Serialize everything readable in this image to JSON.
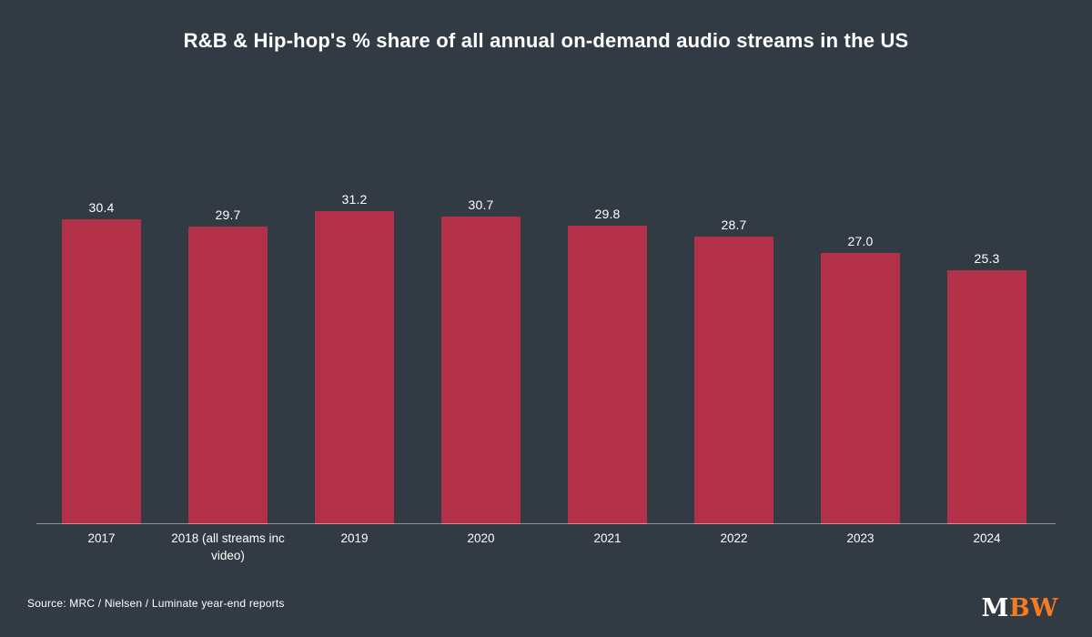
{
  "page": {
    "background_color": "#323a44",
    "text_color": "#ffffff"
  },
  "title": "R&B & Hip-hop's % share of all annual on-demand audio streams in the US",
  "source": "Source: MRC / Nielsen / Luminate year-end reports",
  "logo": {
    "part1": "M",
    "part1_color": "#ffffff",
    "part2": "BW",
    "part2_color": "#f47b20"
  },
  "chart_data": {
    "type": "bar",
    "title": "R&B & Hip-hop's % share of all annual on-demand audio streams in the US",
    "categories": [
      "2017",
      "2018 (all streams inc video)",
      "2019",
      "2020",
      "2021",
      "2022",
      "2023",
      "2024"
    ],
    "values": [
      30.4,
      29.7,
      31.2,
      30.7,
      29.8,
      28.7,
      27.0,
      25.3
    ],
    "value_labels": [
      "30.4",
      "29.7",
      "31.2",
      "30.7",
      "29.8",
      "28.7",
      "27.0",
      "25.3"
    ],
    "bar_color": "#b23148",
    "value_label_color": "#ffffff",
    "xlabel": "",
    "ylabel": "",
    "ylim": [
      0,
      35
    ],
    "grid": false,
    "legend": false,
    "data_labels": true,
    "axis_line_color": "rgba(255,255,255,0.45)"
  }
}
